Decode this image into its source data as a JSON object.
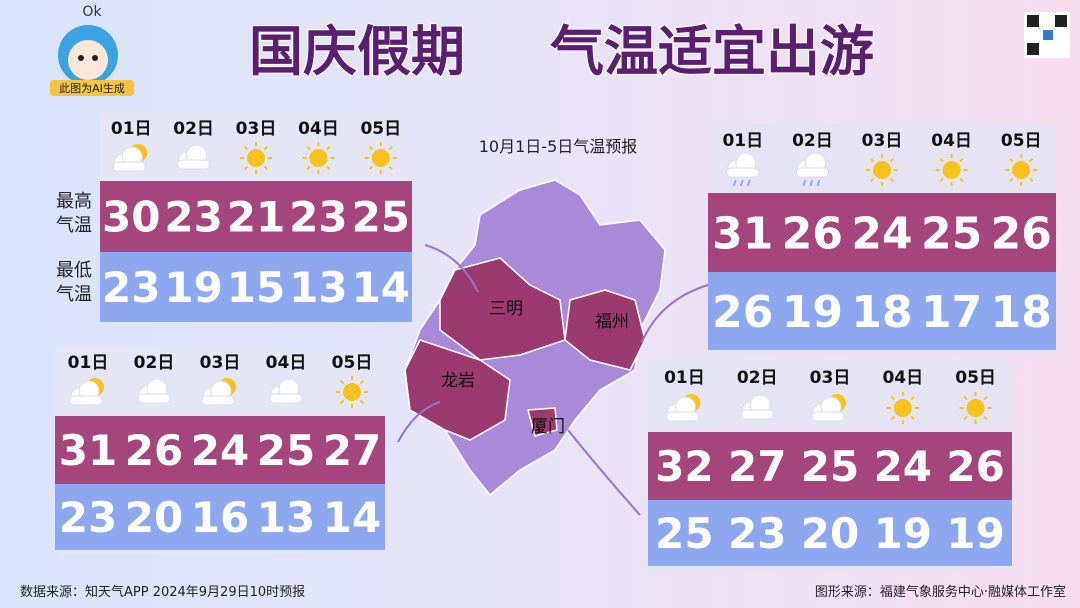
{
  "header": {
    "badge_mark": "Ok",
    "badge_note": "此图为AI生成",
    "title_left": "国庆假期",
    "title_right": "气温适宜出游"
  },
  "map_title": "10月1日-5日气温预报",
  "row_labels": [
    "最高气温",
    "最低气温"
  ],
  "panels": [
    {
      "city": "三明",
      "days": [
        "01日",
        "02日",
        "03日",
        "04日",
        "05日"
      ],
      "high": [
        30,
        23,
        21,
        23,
        25
      ],
      "low": [
        23,
        19,
        15,
        13,
        14
      ]
    },
    {
      "city": "福州",
      "days": [
        "01日",
        "02日",
        "03日",
        "04日",
        "05日"
      ],
      "high": [
        31,
        26,
        24,
        25,
        26
      ],
      "low": [
        26,
        19,
        18,
        17,
        18
      ]
    },
    {
      "city": "龙岩",
      "days": [
        "01日",
        "02日",
        "03日",
        "04日",
        "05日"
      ],
      "high": [
        31,
        26,
        24,
        25,
        27
      ],
      "low": [
        23,
        20,
        16,
        13,
        14
      ]
    },
    {
      "city": "厦门",
      "days": [
        "01日",
        "02日",
        "03日",
        "04日",
        "05日"
      ],
      "high": [
        32,
        27,
        25,
        24,
        26
      ],
      "low": [
        25,
        23,
        20,
        19,
        19
      ]
    }
  ],
  "footer": {
    "source": "数据来源：知天气APP  2024年9月29日10时预报",
    "credit": "图形来源：福建气象服务中心·融媒体工作室"
  }
}
